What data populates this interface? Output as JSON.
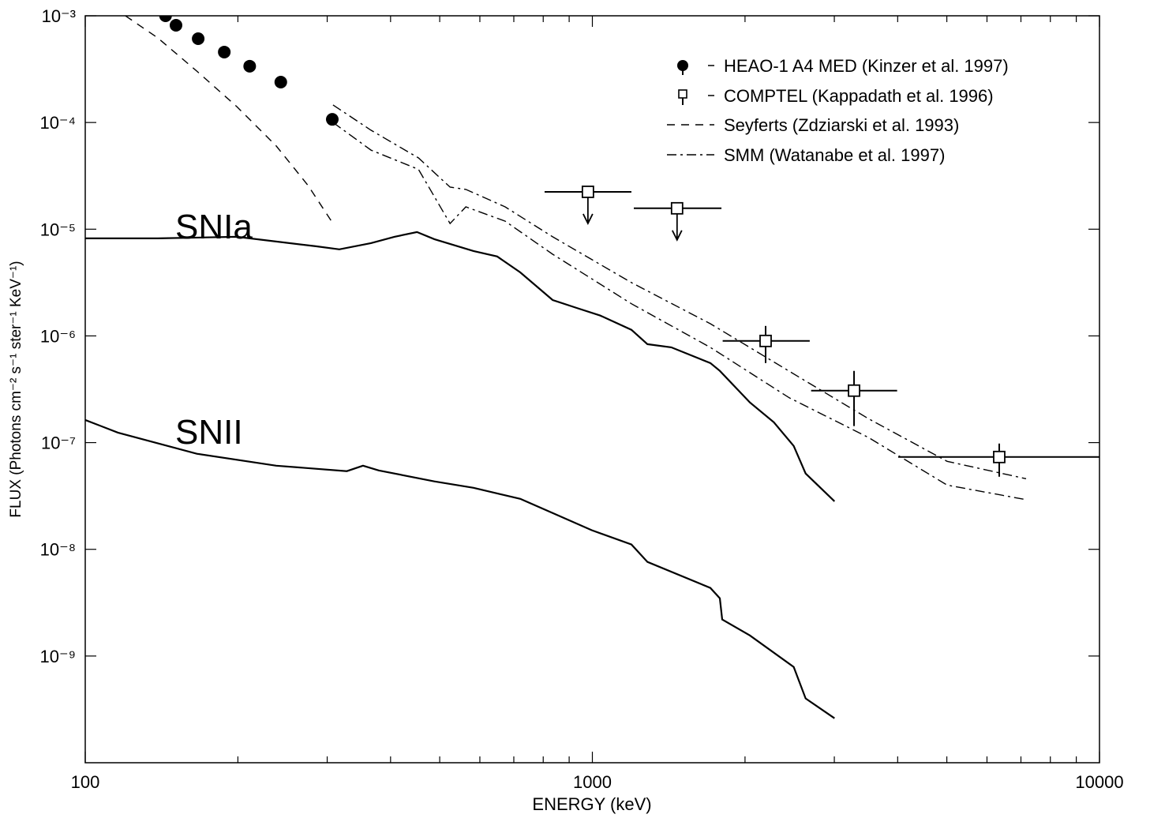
{
  "chart_data": {
    "type": "line",
    "xlabel": "ENERGY  (keV)",
    "ylabel": "FLUX  (Photons cm⁻² s⁻¹ ster⁻¹ KeV⁻¹)",
    "xscale": "log",
    "yscale": "log",
    "xlim": [
      100,
      10000
    ],
    "ylim": [
      1e-10,
      0.001
    ],
    "xticks": [
      100,
      1000,
      10000
    ],
    "xminorticks": [
      200,
      300,
      400,
      500,
      600,
      700,
      800,
      900,
      2000,
      3000,
      4000,
      5000,
      6000,
      7000,
      8000,
      9000
    ],
    "yticks": [
      {
        "value": 1e-09,
        "label": "10⁻⁹"
      },
      {
        "value": 1e-08,
        "label": "10⁻⁸"
      },
      {
        "value": 1e-07,
        "label": "10⁻⁷"
      },
      {
        "value": 1e-06,
        "label": "10⁻⁶"
      },
      {
        "value": 1e-05,
        "label": "10⁻⁵"
      },
      {
        "value": 0.0001,
        "label": "10⁻⁴"
      },
      {
        "value": 0.001,
        "label": "10⁻³"
      }
    ],
    "legend": "upper right",
    "series": [
      {
        "name": "HEAO-1 A4 MED (Kinzer et al. 1997)",
        "style": "filled-circle",
        "color": "#000000",
        "x": [
          144,
          151,
          167,
          188,
          211,
          243,
          307
        ],
        "values": [
          0.001,
          0.000815,
          0.00061,
          0.000457,
          0.000337,
          0.000239,
          0.000107
        ]
      },
      {
        "name": "COMPTEL (Kappadath et al. 1996)",
        "style": "open-square",
        "color": "#000000",
        "x": [
          980,
          1469,
          2196,
          3281,
          6343
        ],
        "values": [
          2.24e-05,
          1.57e-05,
          8.97e-07,
          3.07e-07,
          7.33e-08
        ],
        "x_low": [
          805,
          1207,
          1807,
          2700,
          4010
        ],
        "x_high": [
          1194,
          1797,
          2683,
          3990,
          10000
        ],
        "y_low": [
          null,
          null,
          5.57e-07,
          1.43e-07,
          4.79e-08
        ],
        "y_high": [
          null,
          null,
          1.24e-06,
          4.7e-07,
          9.8e-08
        ],
        "upper_limit": [
          true,
          true,
          false,
          false,
          false
        ]
      },
      {
        "name": "Seyferts (Zdziarski et al. 1993)",
        "style": "dashed",
        "color": "#000000",
        "x": [
          120,
          139,
          166,
          199,
          238,
          275,
          308
        ],
        "values": [
          0.001,
          0.000621,
          0.000303,
          0.000141,
          6.02e-05,
          2.57e-05,
          1.13e-05
        ]
      },
      {
        "name": "SMM (Watanabe et al. 1997)",
        "style": "dash-dot",
        "color": "#000000",
        "x": [
          308,
          366,
          454,
          524,
          563,
          673,
          835,
          1194,
          1709,
          2445,
          3499,
          5007,
          7166
        ],
        "values": [
          0.000146,
          8.47e-05,
          4.66e-05,
          2.48e-05,
          2.36e-05,
          1.62e-05,
          8.49e-06,
          3.16e-06,
          1.3e-06,
          4.66e-07,
          1.68e-07,
          6.67e-08,
          4.59e-08
        ],
        "values_low": [
          0.0001,
          5.51e-05,
          3.64e-05,
          1.13e-05,
          1.62e-05,
          1.19e-05,
          5.83e-06,
          2e-06,
          7.8e-07,
          2.63e-07,
          1.12e-07,
          4e-08,
          2.92e-08
        ]
      },
      {
        "name": "SNIa",
        "style": "solid",
        "color": "#000000",
        "x": [
          100,
          139,
          199,
          285,
          317,
          366,
          407,
          451,
          488,
          583,
          649,
          721,
          835,
          931,
          1037,
          1194,
          1284,
          1431,
          1709,
          1784,
          2045,
          2279,
          2495,
          2634,
          3003
        ],
        "values": [
          8.2e-06,
          8.2e-06,
          8.49e-06,
          6.92e-06,
          6.47e-06,
          7.41e-06,
          8.49e-06,
          9.4e-06,
          8.07e-06,
          6.25e-06,
          5.55e-06,
          3.94e-06,
          2.17e-06,
          1.83e-06,
          1.55e-06,
          1.14e-06,
          8.37e-07,
          7.82e-07,
          5.57e-07,
          4.7e-07,
          2.38e-07,
          1.55e-07,
          9.31e-08,
          5.13e-08,
          2.82e-08
        ]
      },
      {
        "name": "SNII",
        "style": "solid",
        "color": "#000000",
        "x": [
          100,
          116,
          166,
          238,
          328,
          353,
          379,
          488,
          583,
          721,
          835,
          997,
          1194,
          1284,
          1709,
          1784,
          1803,
          2045,
          2495,
          2634,
          3003
        ],
        "values": [
          1.63e-07,
          1.24e-07,
          7.86e-08,
          6.08e-08,
          5.4e-08,
          6.08e-08,
          5.49e-08,
          4.33e-08,
          3.77e-08,
          2.97e-08,
          2.19e-08,
          1.51e-08,
          1.11e-08,
          7.62e-09,
          4.35e-09,
          3.48e-09,
          2.2e-09,
          1.56e-09,
          7.9e-10,
          4e-10,
          2.61e-10
        ]
      }
    ]
  }
}
